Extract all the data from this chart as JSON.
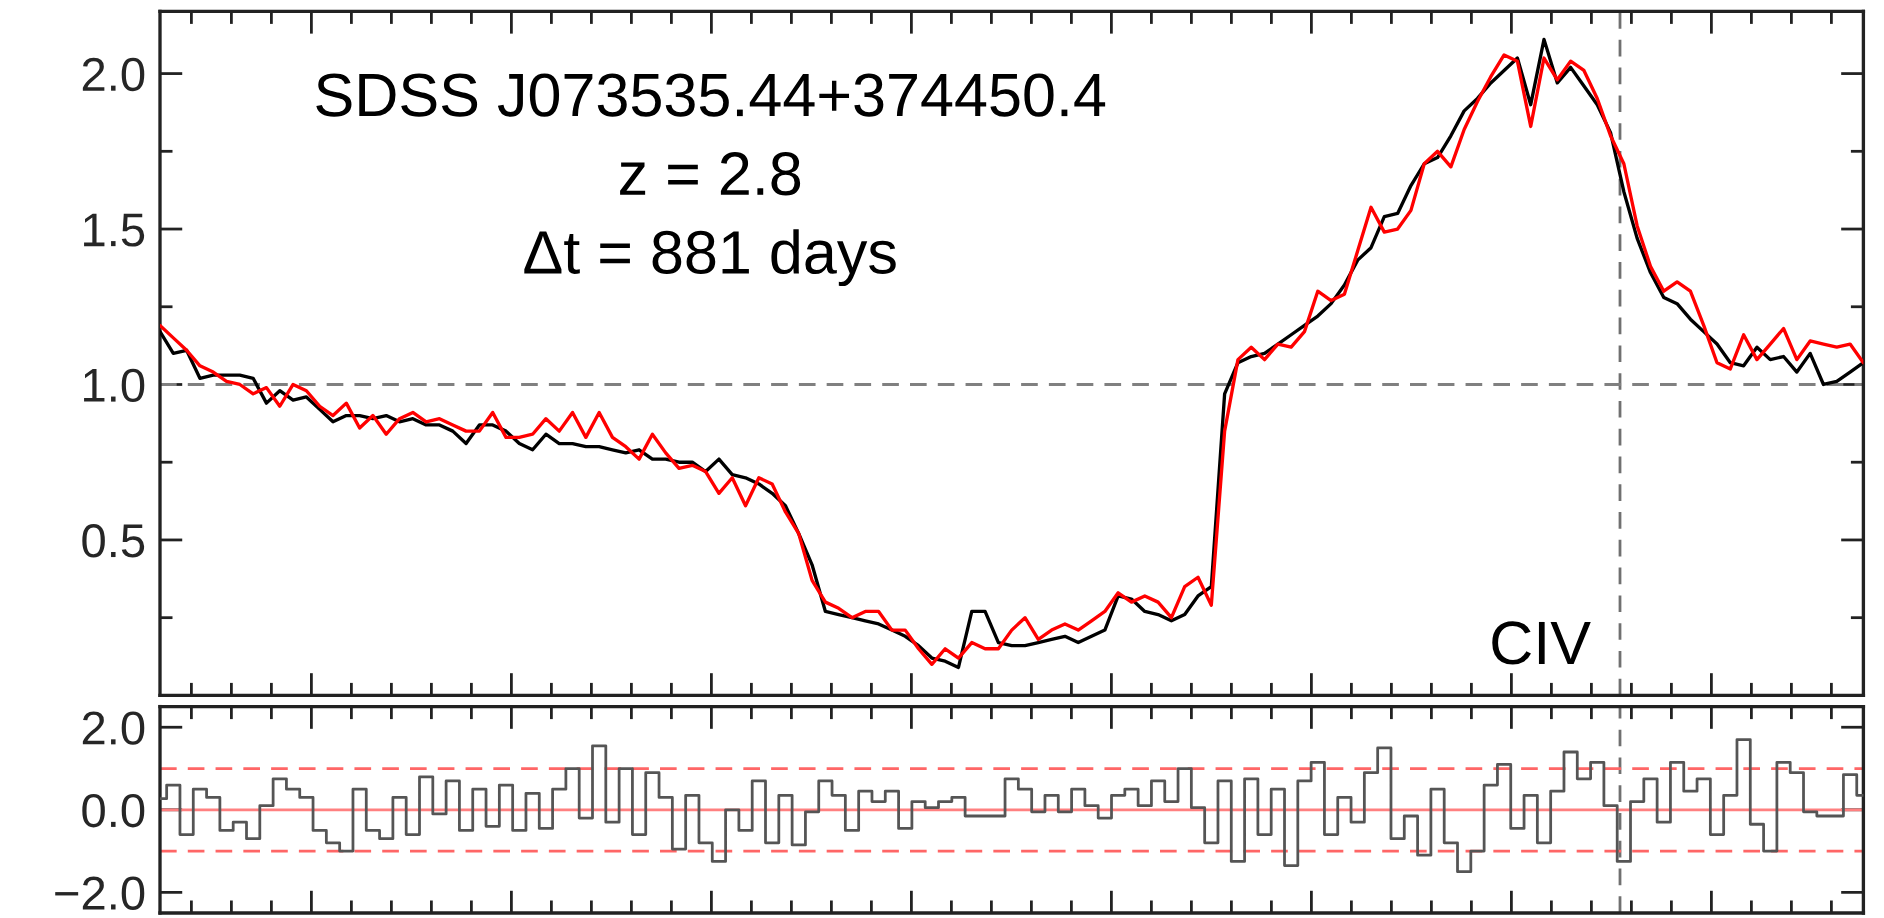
{
  "chart_data": [
    {
      "type": "line",
      "annotations": [
        "SDSS J073535.44+374450.4",
        "z = 2.8",
        "Δt = 881 days",
        "CIV"
      ],
      "categories": [
        null,
        null,
        null,
        null,
        null,
        null,
        null,
        null,
        null,
        null,
        null,
        null,
        null,
        null,
        null,
        null,
        null,
        null,
        null,
        null,
        null,
        null,
        null,
        null,
        null,
        null,
        null,
        null,
        null,
        null,
        null,
        null,
        null,
        null,
        null,
        null,
        null,
        null,
        null,
        null,
        null,
        null,
        null,
        null,
        null,
        null,
        null,
        null,
        null,
        null,
        null,
        null,
        null,
        null,
        null,
        null,
        null,
        null,
        null,
        null,
        null,
        null,
        null,
        null,
        null,
        null,
        null,
        null,
        null,
        null,
        null,
        null,
        null,
        null,
        null,
        null,
        null,
        null,
        null,
        null,
        null,
        null,
        null,
        null,
        null,
        null,
        null,
        null,
        null,
        null,
        null,
        null,
        null,
        null,
        null,
        null,
        null,
        null,
        null,
        null,
        null,
        null,
        null,
        null,
        null,
        null,
        null,
        null,
        null,
        null,
        null,
        null,
        null,
        null,
        null,
        null,
        null,
        null,
        null,
        null,
        null,
        null,
        null,
        null,
        null,
        null,
        null,
        null,
        null
      ],
      "series": [
        {
          "color": "#000000",
          "values": [
            1.17,
            1.1,
            1.11,
            1.02,
            1.03,
            1.03,
            1.03,
            1.02,
            0.94,
            0.98,
            0.95,
            0.96,
            0.92,
            0.88,
            0.9,
            0.9,
            0.89,
            0.9,
            0.88,
            0.89,
            0.87,
            0.87,
            0.85,
            0.81,
            0.87,
            0.87,
            0.85,
            0.81,
            0.79,
            0.84,
            0.81,
            0.81,
            0.8,
            0.8,
            0.79,
            0.78,
            0.79,
            0.76,
            0.76,
            0.75,
            0.75,
            0.72,
            0.76,
            0.71,
            0.7,
            0.68,
            0.65,
            0.61,
            0.52,
            0.42,
            0.27,
            0.26,
            0.25,
            0.24,
            0.23,
            0.21,
            0.19,
            0.16,
            0.12,
            0.11,
            0.09,
            0.27,
            0.27,
            0.17,
            0.16,
            0.16,
            0.17,
            0.18,
            0.19,
            0.17,
            0.19,
            0.21,
            0.32,
            0.31,
            0.27,
            0.26,
            0.24,
            0.26,
            0.32,
            0.35,
            0.97,
            1.07,
            1.09,
            1.1,
            1.13,
            1.16,
            1.19,
            1.22,
            1.26,
            1.32,
            1.4,
            1.44,
            1.54,
            1.55,
            1.64,
            1.71,
            1.73,
            1.8,
            1.88,
            1.92,
            1.97,
            2.01,
            2.05,
            1.9,
            2.11,
            1.97,
            2.02,
            1.96,
            1.9,
            1.81,
            1.62,
            1.47,
            1.36,
            1.28,
            1.26,
            1.21,
            1.17,
            1.13,
            1.07,
            1.06,
            1.12,
            1.08,
            1.09,
            1.04,
            1.1,
            1.0,
            1.01,
            1.04,
            1.07
          ]
        },
        {
          "color": "#ff0000",
          "values": [
            1.19,
            1.15,
            1.11,
            1.06,
            1.04,
            1.01,
            1.0,
            0.97,
            0.99,
            0.93,
            1.0,
            0.98,
            0.93,
            0.9,
            0.94,
            0.86,
            0.9,
            0.84,
            0.89,
            0.91,
            0.88,
            0.89,
            0.87,
            0.85,
            0.85,
            0.91,
            0.83,
            0.83,
            0.84,
            0.89,
            0.85,
            0.91,
            0.83,
            0.91,
            0.83,
            0.8,
            0.76,
            0.84,
            0.78,
            0.73,
            0.74,
            0.72,
            0.65,
            0.7,
            0.61,
            0.7,
            0.68,
            0.59,
            0.52,
            0.37,
            0.3,
            0.28,
            0.25,
            0.27,
            0.27,
            0.21,
            0.21,
            0.15,
            0.1,
            0.15,
            0.12,
            0.17,
            0.15,
            0.15,
            0.21,
            0.25,
            0.18,
            0.21,
            0.23,
            0.21,
            0.24,
            0.27,
            0.33,
            0.3,
            0.32,
            0.3,
            0.25,
            0.35,
            0.38,
            0.29,
            0.85,
            1.08,
            1.12,
            1.08,
            1.13,
            1.12,
            1.17,
            1.3,
            1.27,
            1.29,
            1.43,
            1.57,
            1.49,
            1.5,
            1.56,
            1.71,
            1.75,
            1.7,
            1.82,
            1.91,
            1.99,
            2.06,
            2.04,
            1.83,
            2.05,
            1.98,
            2.04,
            2.01,
            1.92,
            1.8,
            1.71,
            1.51,
            1.38,
            1.3,
            1.33,
            1.3,
            1.19,
            1.07,
            1.05,
            1.16,
            1.08,
            1.13,
            1.18,
            1.08,
            1.14,
            1.13,
            1.12,
            1.13,
            1.07
          ]
        }
      ],
      "ylim": [
        0,
        2.2
      ],
      "yticks": [
        {
          "value": 0.25,
          "label": null
        },
        {
          "value": 0.5,
          "label": "0.5"
        },
        {
          "value": 0.75,
          "label": null
        },
        {
          "value": 1,
          "label": "1.0"
        },
        {
          "value": 1.25,
          "label": null
        },
        {
          "value": 1.5,
          "label": "1.5"
        },
        {
          "value": 1.75,
          "label": null
        },
        {
          "value": 2,
          "label": "2.0"
        }
      ],
      "ref_lines": [
        {
          "axis": "y",
          "value": 1,
          "color": "#808080",
          "line_style": "dashed"
        }
      ],
      "tick_labels": "y"
    },
    {
      "type": "step",
      "categories": [
        null,
        null,
        null,
        null,
        null,
        null,
        null,
        null,
        null,
        null,
        null,
        null,
        null,
        null,
        null,
        null,
        null,
        null,
        null,
        null,
        null,
        null,
        null,
        null,
        null,
        null,
        null,
        null,
        null,
        null,
        null,
        null,
        null,
        null,
        null,
        null,
        null,
        null,
        null,
        null,
        null,
        null,
        null,
        null,
        null,
        null,
        null,
        null,
        null,
        null,
        null,
        null,
        null,
        null,
        null,
        null,
        null,
        null,
        null,
        null,
        null,
        null,
        null,
        null,
        null,
        null,
        null,
        null,
        null,
        null,
        null,
        null,
        null,
        null,
        null,
        null,
        null,
        null,
        null,
        null,
        null,
        null,
        null,
        null,
        null,
        null,
        null,
        null,
        null,
        null,
        null,
        null,
        null,
        null,
        null,
        null,
        null,
        null,
        null,
        null,
        null,
        null,
        null,
        null,
        null,
        null,
        null,
        null,
        null,
        null,
        null,
        null,
        null,
        null,
        null,
        null,
        null,
        null,
        null,
        null,
        null,
        null,
        null,
        null,
        null,
        null,
        null,
        null,
        null
      ],
      "series": [
        {
          "color": "#555555",
          "values": [
            0.27,
            0.6,
            -0.6,
            0.5,
            0.3,
            -0.5,
            -0.3,
            -0.7,
            0.1,
            0.75,
            0.5,
            0.3,
            -0.5,
            -0.8,
            -1.0,
            0.5,
            -0.5,
            -0.7,
            0.3,
            -0.6,
            0.8,
            -0.1,
            0.7,
            -0.5,
            0.5,
            -0.4,
            0.6,
            -0.5,
            0.4,
            -0.45,
            0.5,
            1.0,
            -0.2,
            1.55,
            -0.3,
            1.0,
            -0.6,
            0.9,
            0.3,
            -0.95,
            0.35,
            -0.8,
            -1.25,
            0.0,
            -0.5,
            0.7,
            -0.8,
            0.35,
            -0.85,
            -0.05,
            0.7,
            0.35,
            -0.5,
            0.45,
            0.2,
            0.45,
            -0.45,
            0.2,
            0.05,
            0.2,
            0.3,
            -0.15,
            -0.15,
            -0.15,
            0.75,
            0.5,
            -0.05,
            0.35,
            -0.05,
            0.5,
            0.1,
            -0.2,
            0.35,
            0.5,
            0.1,
            0.7,
            0.2,
            1.0,
            0.05,
            -0.8,
            0.7,
            -1.25,
            0.75,
            -0.6,
            0.5,
            -1.35,
            0.7,
            1.15,
            -0.6,
            0.3,
            -0.3,
            0.9,
            1.5,
            -0.7,
            -0.15,
            -1.1,
            0.5,
            -0.8,
            -1.5,
            -1.0,
            0.6,
            1.1,
            -0.45,
            0.35,
            -0.8,
            0.45,
            1.4,
            0.75,
            1.15,
            0.1,
            -1.25,
            0.2,
            0.75,
            -0.3,
            1.15,
            0.45,
            0.75,
            -0.6,
            0.35,
            1.7,
            -0.35,
            -1.0,
            1.15,
            0.9,
            -0.05,
            -0.15,
            -0.15,
            0.85,
            0.35
          ]
        }
      ],
      "ylim": [
        -2.5,
        2.5
      ],
      "yticks": [
        {
          "value": -2,
          "label": "−2.0"
        },
        {
          "value": 0,
          "label": "0.0"
        },
        {
          "value": 2,
          "label": "2.0"
        }
      ],
      "ref_lines": [
        {
          "axis": "y",
          "value": 0,
          "color": "#ff8080",
          "line_style": "solid"
        },
        {
          "axis": "y",
          "value": 1,
          "color": "#ff6666",
          "line_style": "dashed"
        },
        {
          "axis": "y",
          "value": -1,
          "color": "#ff6666",
          "line_style": "dashed"
        }
      ],
      "tick_labels": "y"
    }
  ]
}
